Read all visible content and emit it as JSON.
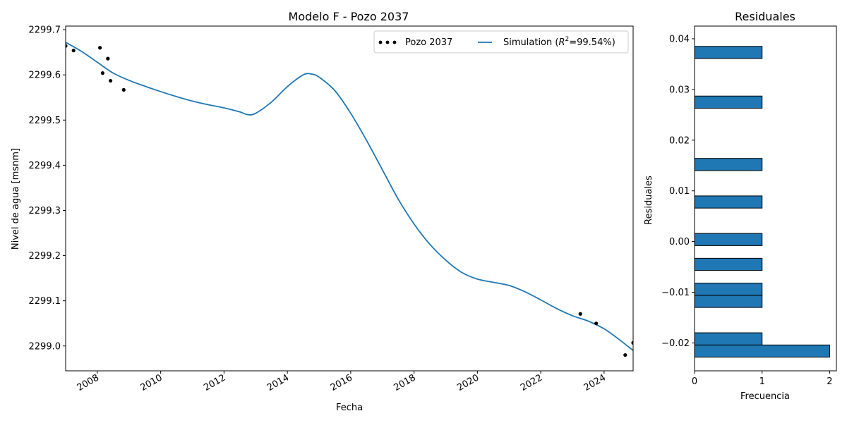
{
  "chart_data": [
    {
      "type": "line",
      "title": "Modelo F - Pozo 2037",
      "xlabel": "Fecha",
      "ylabel": "Nivel de agua [msnm]",
      "xlim": [
        "2007-01-01",
        "2024-12-01"
      ],
      "ylim": [
        2298.945,
        2299.708
      ],
      "x_ticks": [
        "2008",
        "2010",
        "2012",
        "2014",
        "2016",
        "2018",
        "2020",
        "2022",
        "2024"
      ],
      "y_ticks": [
        "2299.0",
        "2299.1",
        "2299.2",
        "2299.3",
        "2299.4",
        "2299.5",
        "2299.6",
        "2299.7"
      ],
      "grid": false,
      "legend_position": "top-right",
      "series": [
        {
          "name": "Pozo 2037",
          "style": "markers",
          "color": "#000000",
          "points": [
            {
              "x": "2007-01-01",
              "y": 2299.664
            },
            {
              "x": "2007-04-01",
              "y": 2299.654
            },
            {
              "x": "2008-02-01",
              "y": 2299.66
            },
            {
              "x": "2008-03-01",
              "y": 2299.604
            },
            {
              "x": "2008-05-01",
              "y": 2299.636
            },
            {
              "x": "2008-06-01",
              "y": 2299.587
            },
            {
              "x": "2008-11-01",
              "y": 2299.567
            },
            {
              "x": "2023-04-01",
              "y": 2299.071
            },
            {
              "x": "2023-10-01",
              "y": 2299.05
            },
            {
              "x": "2024-09-01",
              "y": 2298.98
            },
            {
              "x": "2024-12-01",
              "y": 2299.007
            }
          ]
        },
        {
          "name": "Simulation ($R^2$=99.54%)",
          "legend_prefix": "Simulation (",
          "legend_r": "R",
          "legend_sup": "2",
          "legend_suffix": "=99.54%)",
          "style": "line",
          "color": "#1f77b4",
          "points": [
            {
              "x": "2007-01-01",
              "y": 2299.672
            },
            {
              "x": "2007-07-01",
              "y": 2299.652
            },
            {
              "x": "2008-01-01",
              "y": 2299.628
            },
            {
              "x": "2008-07-01",
              "y": 2299.604
            },
            {
              "x": "2009-01-01",
              "y": 2299.588
            },
            {
              "x": "2009-07-01",
              "y": 2299.575
            },
            {
              "x": "2010-01-01",
              "y": 2299.563
            },
            {
              "x": "2010-07-01",
              "y": 2299.552
            },
            {
              "x": "2011-01-01",
              "y": 2299.542
            },
            {
              "x": "2011-07-01",
              "y": 2299.534
            },
            {
              "x": "2012-01-01",
              "y": 2299.527
            },
            {
              "x": "2012-07-01",
              "y": 2299.518
            },
            {
              "x": "2012-10-01",
              "y": 2299.512
            },
            {
              "x": "2013-01-01",
              "y": 2299.515
            },
            {
              "x": "2013-07-01",
              "y": 2299.54
            },
            {
              "x": "2014-01-01",
              "y": 2299.574
            },
            {
              "x": "2014-07-01",
              "y": 2299.6
            },
            {
              "x": "2014-10-01",
              "y": 2299.602
            },
            {
              "x": "2015-01-01",
              "y": 2299.595
            },
            {
              "x": "2015-07-01",
              "y": 2299.565
            },
            {
              "x": "2016-01-01",
              "y": 2299.515
            },
            {
              "x": "2016-07-01",
              "y": 2299.455
            },
            {
              "x": "2017-01-01",
              "y": 2299.39
            },
            {
              "x": "2017-07-01",
              "y": 2299.325
            },
            {
              "x": "2018-01-01",
              "y": 2299.27
            },
            {
              "x": "2018-07-01",
              "y": 2299.225
            },
            {
              "x": "2019-01-01",
              "y": 2299.19
            },
            {
              "x": "2019-07-01",
              "y": 2299.163
            },
            {
              "x": "2020-01-01",
              "y": 2299.148
            },
            {
              "x": "2020-07-01",
              "y": 2299.141
            },
            {
              "x": "2021-01-01",
              "y": 2299.134
            },
            {
              "x": "2021-07-01",
              "y": 2299.12
            },
            {
              "x": "2022-01-01",
              "y": 2299.102
            },
            {
              "x": "2022-07-01",
              "y": 2299.083
            },
            {
              "x": "2023-01-01",
              "y": 2299.067
            },
            {
              "x": "2023-07-01",
              "y": 2299.055
            },
            {
              "x": "2024-01-01",
              "y": 2299.038
            },
            {
              "x": "2024-07-01",
              "y": 2299.013
            },
            {
              "x": "2024-12-01",
              "y": 2298.99
            }
          ]
        }
      ]
    },
    {
      "type": "bar",
      "orientation": "horizontal",
      "title": "Residuales",
      "xlabel": "Frecuencia",
      "ylabel": "Residuales",
      "xlim": [
        0,
        2.1
      ],
      "ylim": [
        -0.0255,
        0.0425
      ],
      "x_ticks": [
        "0",
        "1",
        "2"
      ],
      "y_ticks": [
        "−0.02",
        "−0.01",
        "0.00",
        "0.01",
        "0.02",
        "0.03",
        "0.04"
      ],
      "color": "#1f77b4",
      "edge_color": "#000000",
      "bars": [
        {
          "y0": -0.0228,
          "y1": -0.0204,
          "count": 2
        },
        {
          "y0": -0.0204,
          "y1": -0.018,
          "count": 1
        },
        {
          "y0": -0.013,
          "y1": -0.0106,
          "count": 1
        },
        {
          "y0": -0.0106,
          "y1": -0.0082,
          "count": 1
        },
        {
          "y0": -0.0057,
          "y1": -0.0033,
          "count": 1
        },
        {
          "y0": -0.0008,
          "y1": 0.0016,
          "count": 1
        },
        {
          "y0": 0.0066,
          "y1": 0.009,
          "count": 1
        },
        {
          "y0": 0.014,
          "y1": 0.0164,
          "count": 1
        },
        {
          "y0": 0.0263,
          "y1": 0.0287,
          "count": 1
        },
        {
          "y0": 0.0361,
          "y1": 0.0385,
          "count": 1
        }
      ]
    }
  ]
}
